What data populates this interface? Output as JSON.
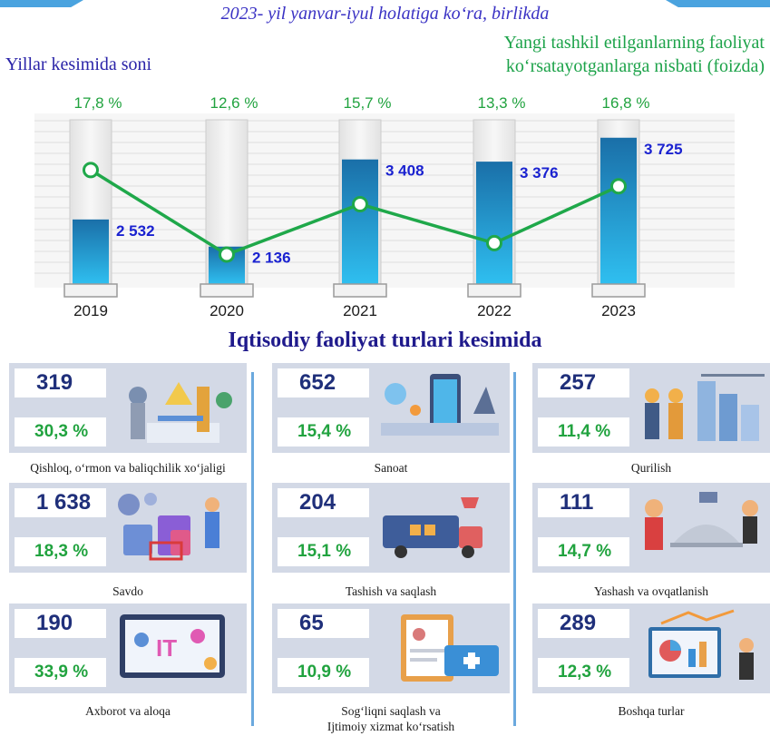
{
  "header": {
    "subtitle": "2023- yil yanvar-iyul holatiga ko‘ra, birlikda",
    "left_title": "Yillar kesimida soni",
    "right_title_line1": "Yangi tashkil etilganlarning faoliyat",
    "right_title_line2": "ko‘rsatayotganlarga nisbati (foizda)"
  },
  "chart_data": {
    "type": "bar",
    "categories": [
      "2019",
      "2020",
      "2021",
      "2022",
      "2023"
    ],
    "series": [
      {
        "type": "bar",
        "values": [
          2532,
          2136,
          3408,
          3376,
          3725
        ],
        "labels": [
          "2 532",
          "2 136",
          "3 408",
          "3 376",
          "3 725"
        ]
      },
      {
        "type": "line",
        "values": [
          17.8,
          12.6,
          15.7,
          13.3,
          16.8
        ],
        "labels": [
          "17,8 %",
          "12,6 %",
          "15,7 %",
          "13,3 %",
          "16,8 %"
        ]
      }
    ],
    "colors": {
      "bar_top": "#1a6fa8",
      "bar_bottom": "#2fbff0",
      "bar_track": "#efefef",
      "line": "#1fa84a",
      "value_label": "#1a22d0",
      "pct_label": "#21a33f"
    },
    "grid": true,
    "legend": "none"
  },
  "section": {
    "title": "Iqtisodiy faoliyat turlari kesimida"
  },
  "sectors": [
    {
      "count": "319",
      "percent": "30,3 %",
      "label": "Qishloq, o‘rmon va baliqchilik xo‘jaligi",
      "icon": "agriculture-icon"
    },
    {
      "count": "652",
      "percent": "15,4 %",
      "label": "Sanoat",
      "icon": "industry-icon"
    },
    {
      "count": "257",
      "percent": "11,4 %",
      "label": "Qurilish",
      "icon": "construction-icon"
    },
    {
      "count": "1 638",
      "percent": "18,3 %",
      "label": "Savdo",
      "icon": "shopping-icon"
    },
    {
      "count": "204",
      "percent": "15,1 %",
      "label": "Tashish va saqlash",
      "icon": "transport-icon"
    },
    {
      "count": "111",
      "percent": "14,7 %",
      "label": "Yashash va ovqatlanish",
      "icon": "hospitality-icon"
    },
    {
      "count": "190",
      "percent": "33,9 %",
      "label": "Axborot va aloqa",
      "icon": "it-icon"
    },
    {
      "count": "65",
      "percent": "10,9 %",
      "label_line1": "Sog‘liqni saqlash va",
      "label_line2": "Ijtimoiy xizmat ko‘rsatish",
      "icon": "healthcare-icon"
    },
    {
      "count": "289",
      "percent": "12,3 %",
      "label": "Boshqa turlar",
      "icon": "analytics-icon"
    }
  ]
}
